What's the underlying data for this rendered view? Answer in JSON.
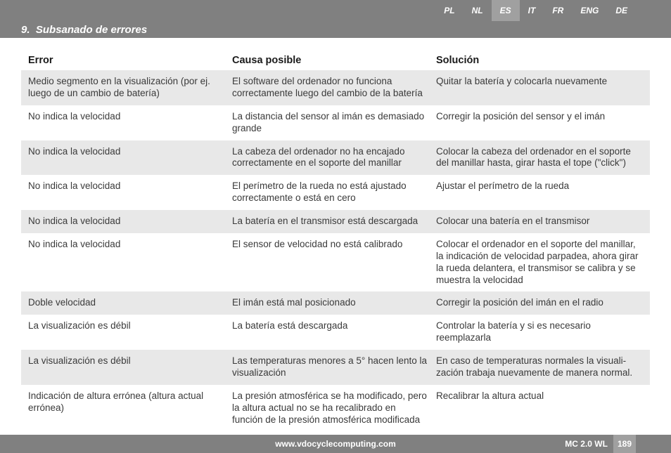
{
  "langBar": {
    "items": [
      "PL",
      "NL",
      "ES",
      "IT",
      "FR",
      "ENG",
      "DE"
    ],
    "activeIndex": 2
  },
  "section": {
    "number": "9.",
    "title": "Subsanado de errores"
  },
  "table": {
    "headers": {
      "col1": "Error",
      "col2": "Causa posible",
      "col3": "Solución"
    },
    "rows": [
      {
        "c1": "Medio segmento en la visualización (por ej. luego de un cambio de batería)",
        "c2": "El software del ordenador no funciona correctamente luego del cambio de la batería",
        "c3": "Quitar la batería y colocarla nuevamente"
      },
      {
        "c1": "No indica la velocidad",
        "c2": "La distancia del sensor al imán es demasiado grande",
        "c3": "Corregir la posición del sensor y el imán"
      },
      {
        "c1": "No indica la velocidad",
        "c2": "La cabeza del ordenador no ha encajado correctamente en el soporte del manillar",
        "c3": "Colocar la cabeza del ordenador en el soporte del manillar hasta, girar hasta el tope (\"click\")"
      },
      {
        "c1": "No indica la velocidad",
        "c2": "El perímetro de la rueda no está ajustado correctamente o está en cero",
        "c3": "Ajustar el perímetro de la rueda"
      },
      {
        "c1": "No indica la velocidad",
        "c2": "La batería en el transmisor está descargada",
        "c3": "Colocar una batería en el transmisor"
      },
      {
        "c1": "No indica la velocidad",
        "c2": "El sensor de velocidad no está calibrado",
        "c3": "Colocar el ordenador en el soporte del manillar, la indicación de velocidad parpadea, ahora girar la rueda delantera, el transmisor se calibra y se muestra la velocidad"
      },
      {
        "c1": "Doble velocidad",
        "c2": "El imán está mal posicionado",
        "c3": "Corregir la posición del imán en el radio"
      },
      {
        "c1": "La visualización es débil",
        "c2": "La batería está descargada",
        "c3": "Controlar la batería y si es necesario reemplazarla"
      },
      {
        "c1": "La visualización es débil",
        "c2": "Las temperaturas menores a 5° hacen lento la visualización",
        "c3": "En caso de temperaturas normales la visuali- zación trabaja nuevamente de manera normal."
      },
      {
        "c1": "Indicación de altura errónea (altura actual errónea)",
        "c2": "La presión atmosférica se ha modificado, pero la altura actual no se ha recalibrado en función de la presión atmosférica modificada",
        "c3": "Recalibrar la altura actual"
      }
    ]
  },
  "footer": {
    "url": "www.vdocyclecomputing.com",
    "model": "MC 2.0 WL",
    "page": "189"
  },
  "colors": {
    "barGray": "#808080",
    "activeGray": "#a0a0a0",
    "rowShade": "#e8e8e8",
    "textDark": "#1a1a1a",
    "textBody": "#3a3a3a"
  }
}
